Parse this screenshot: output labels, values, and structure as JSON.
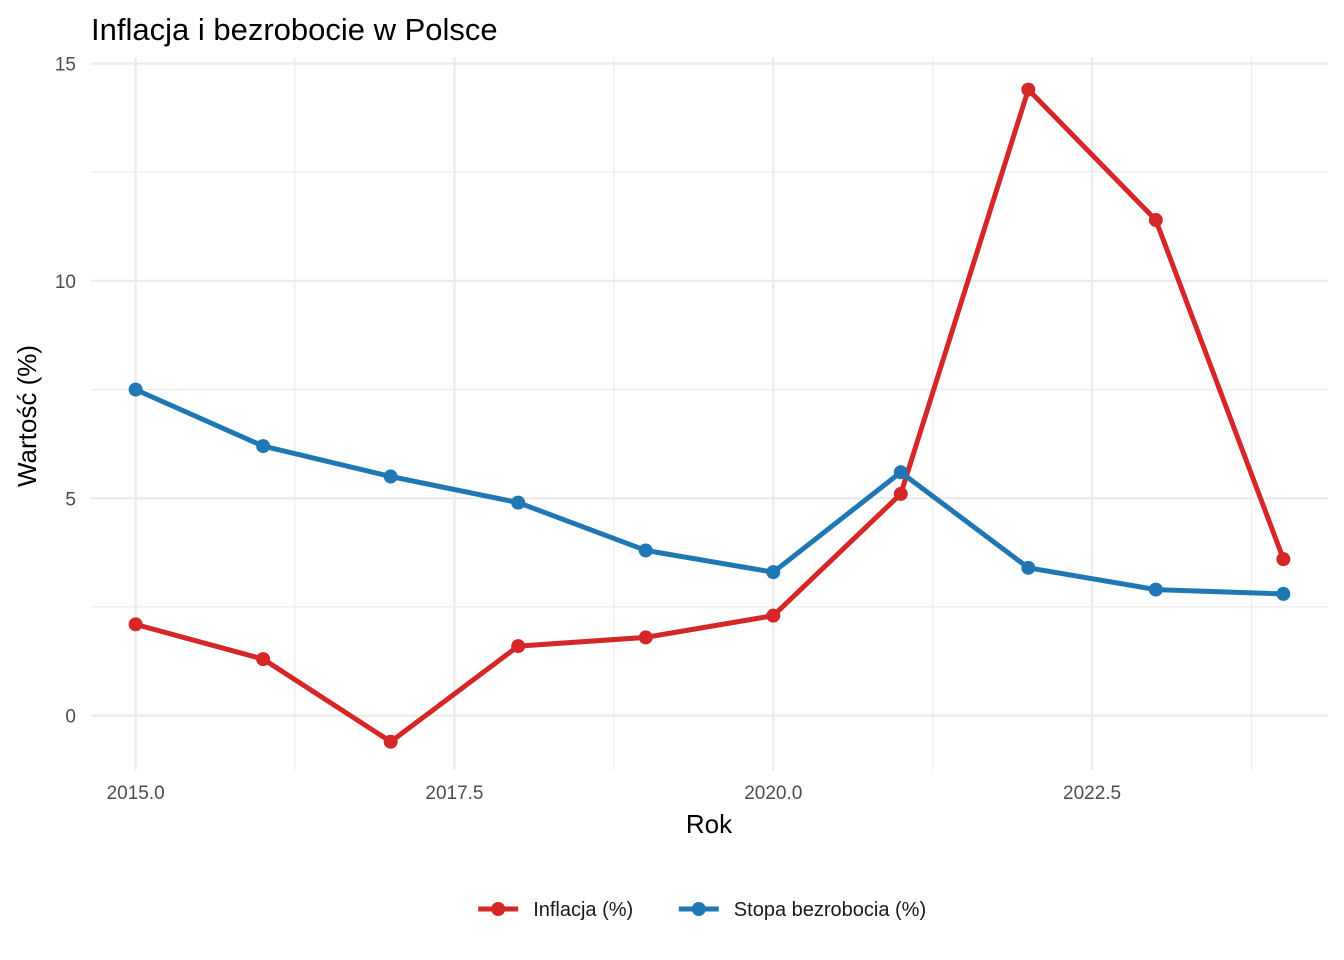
{
  "chart_data": {
    "type": "line",
    "title": "Inflacja i bezrobocie w Polsce",
    "xlabel": "Rok",
    "ylabel": "Wartość (%)",
    "xlim": [
      2014.65,
      2024.35
    ],
    "ylim": [
      -1.25,
      15.15
    ],
    "x_ticks": [
      2015.0,
      2017.5,
      2020.0,
      2022.5
    ],
    "x_tick_labels": [
      "2015.0",
      "2017.5",
      "2020.0",
      "2022.5"
    ],
    "x_minor_ticks": [
      2016.25,
      2018.75,
      2021.25,
      2023.75
    ],
    "y_ticks": [
      0,
      5,
      10,
      15
    ],
    "y_tick_labels": [
      "0",
      "5",
      "10",
      "15"
    ],
    "y_minor_ticks": [
      2.5,
      7.5,
      12.5
    ],
    "grid": true,
    "legend_position": "bottom",
    "x": [
      2015,
      2016,
      2017,
      2018,
      2019,
      2020,
      2021,
      2022,
      2023,
      2024
    ],
    "series": [
      {
        "name": "Inflacja (%)",
        "color": "#d62728",
        "values": [
          2.1,
          1.3,
          -0.6,
          1.6,
          1.8,
          2.3,
          5.1,
          14.4,
          11.4,
          3.6
        ]
      },
      {
        "name": "Stopa bezrobocia (%)",
        "color": "#1f77b4",
        "values": [
          7.5,
          6.2,
          5.5,
          4.9,
          3.8,
          3.3,
          5.6,
          3.4,
          2.9,
          2.8
        ]
      }
    ]
  }
}
